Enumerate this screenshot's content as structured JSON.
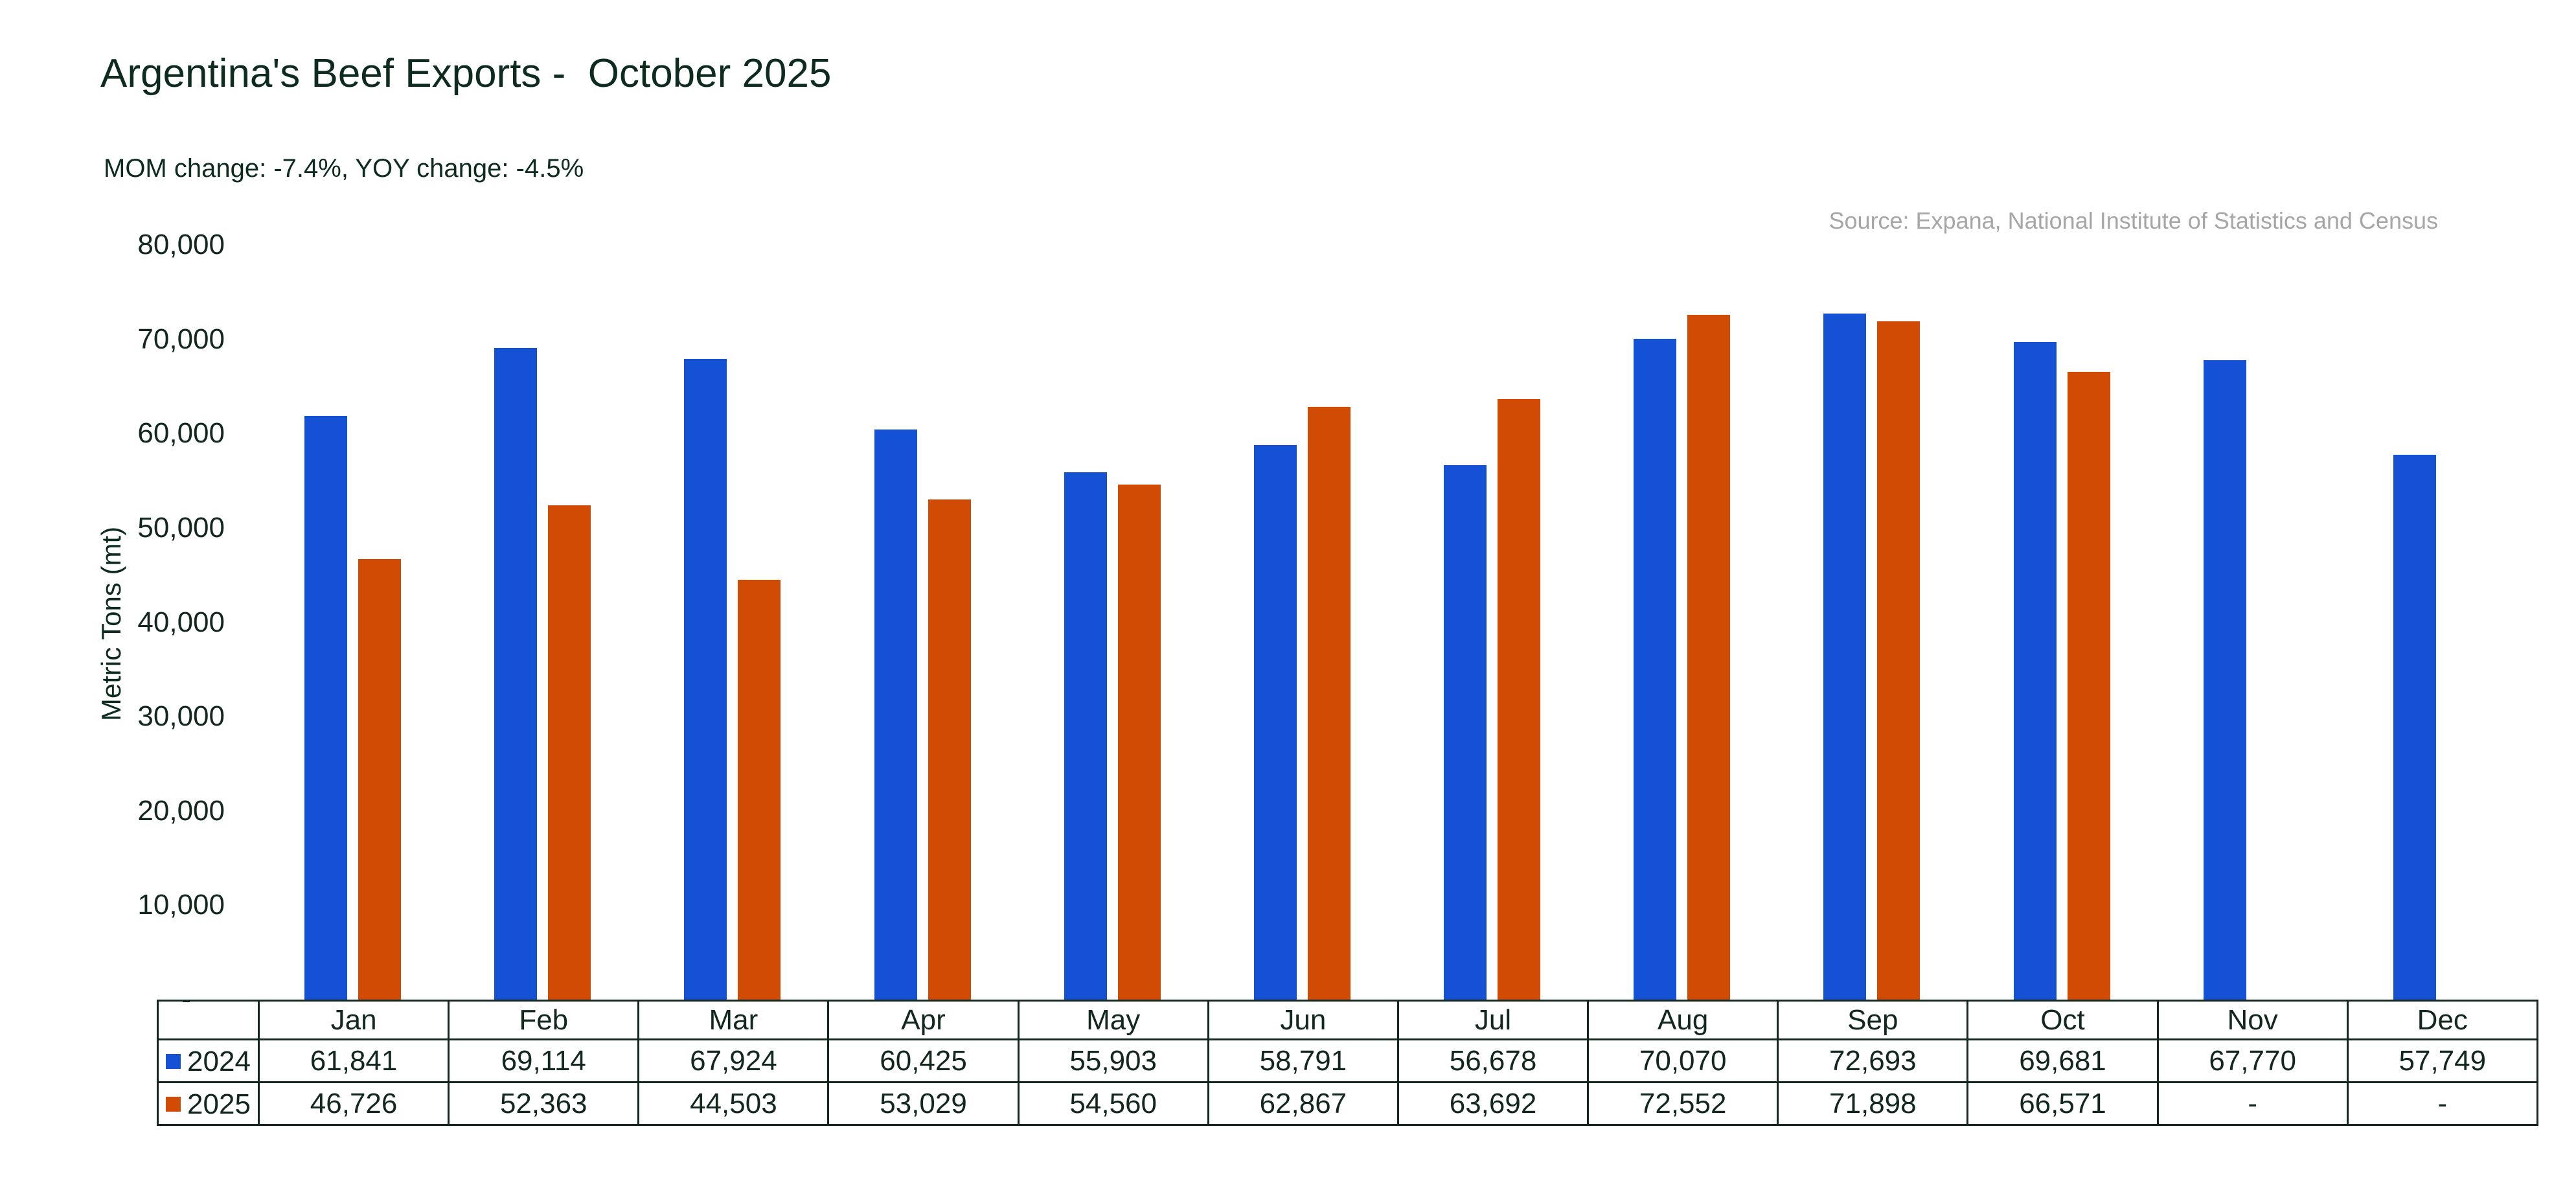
{
  "header": {
    "title": "Argentina's Beef Exports -  October 2025",
    "subtitle": "MOM change: -7.4%, YOY change: -4.5%",
    "source": "Source: Expana, National Institute of Statistics and Census"
  },
  "chart_data": {
    "type": "bar",
    "title": "Argentina's Beef Exports -  October 2025",
    "subtitle": "MOM change: -7.4%, YOY change: -4.5%",
    "source": "Source: Expana, National Institute of Statistics and Census",
    "xlabel": "",
    "ylabel": "Metric Tons (mt)",
    "ylim": [
      0,
      80000
    ],
    "grid": false,
    "legend_position": "table-left",
    "categories": [
      "Jan",
      "Feb",
      "Mar",
      "Apr",
      "May",
      "Jun",
      "Jul",
      "Aug",
      "Sep",
      "Oct",
      "Nov",
      "Dec"
    ],
    "series": [
      {
        "name": "2024",
        "color": "#1551D4",
        "values": [
          61841,
          69114,
          67924,
          60425,
          55903,
          58791,
          56678,
          70070,
          72693,
          69681,
          67770,
          57749
        ],
        "display": [
          "61,841",
          "69,114",
          "67,924",
          "60,425",
          "55,903",
          "58,791",
          "56,678",
          "70,070",
          "72,693",
          "69,681",
          "67,770",
          "57,749"
        ]
      },
      {
        "name": "2025",
        "color": "#D24B04",
        "values": [
          46726,
          52363,
          44503,
          53029,
          54560,
          62867,
          63692,
          72552,
          71898,
          66571,
          null,
          null
        ],
        "display": [
          "46,726",
          "52,363",
          "44,503",
          "53,029",
          "54,560",
          "62,867",
          "63,692",
          "72,552",
          "71,898",
          "66,571",
          "-",
          "-"
        ]
      }
    ],
    "yticks": [
      {
        "label": "80,000",
        "value": 80000
      },
      {
        "label": "70,000",
        "value": 70000
      },
      {
        "label": "60,000",
        "value": 60000
      },
      {
        "label": "50,000",
        "value": 50000
      },
      {
        "label": "40,000",
        "value": 40000
      },
      {
        "label": "30,000",
        "value": 30000
      },
      {
        "label": "20,000",
        "value": 20000
      },
      {
        "label": "10,000",
        "value": 10000
      },
      {
        "label": "-",
        "value": 0
      }
    ]
  },
  "colors": {
    "text": "#12281F",
    "title": "#0D2B1F",
    "source_text": "#A6A6A6",
    "table_border": "#12281F",
    "series_2024": "#1551D4",
    "series_2025": "#D24B04",
    "background": "#FFFFFF"
  }
}
